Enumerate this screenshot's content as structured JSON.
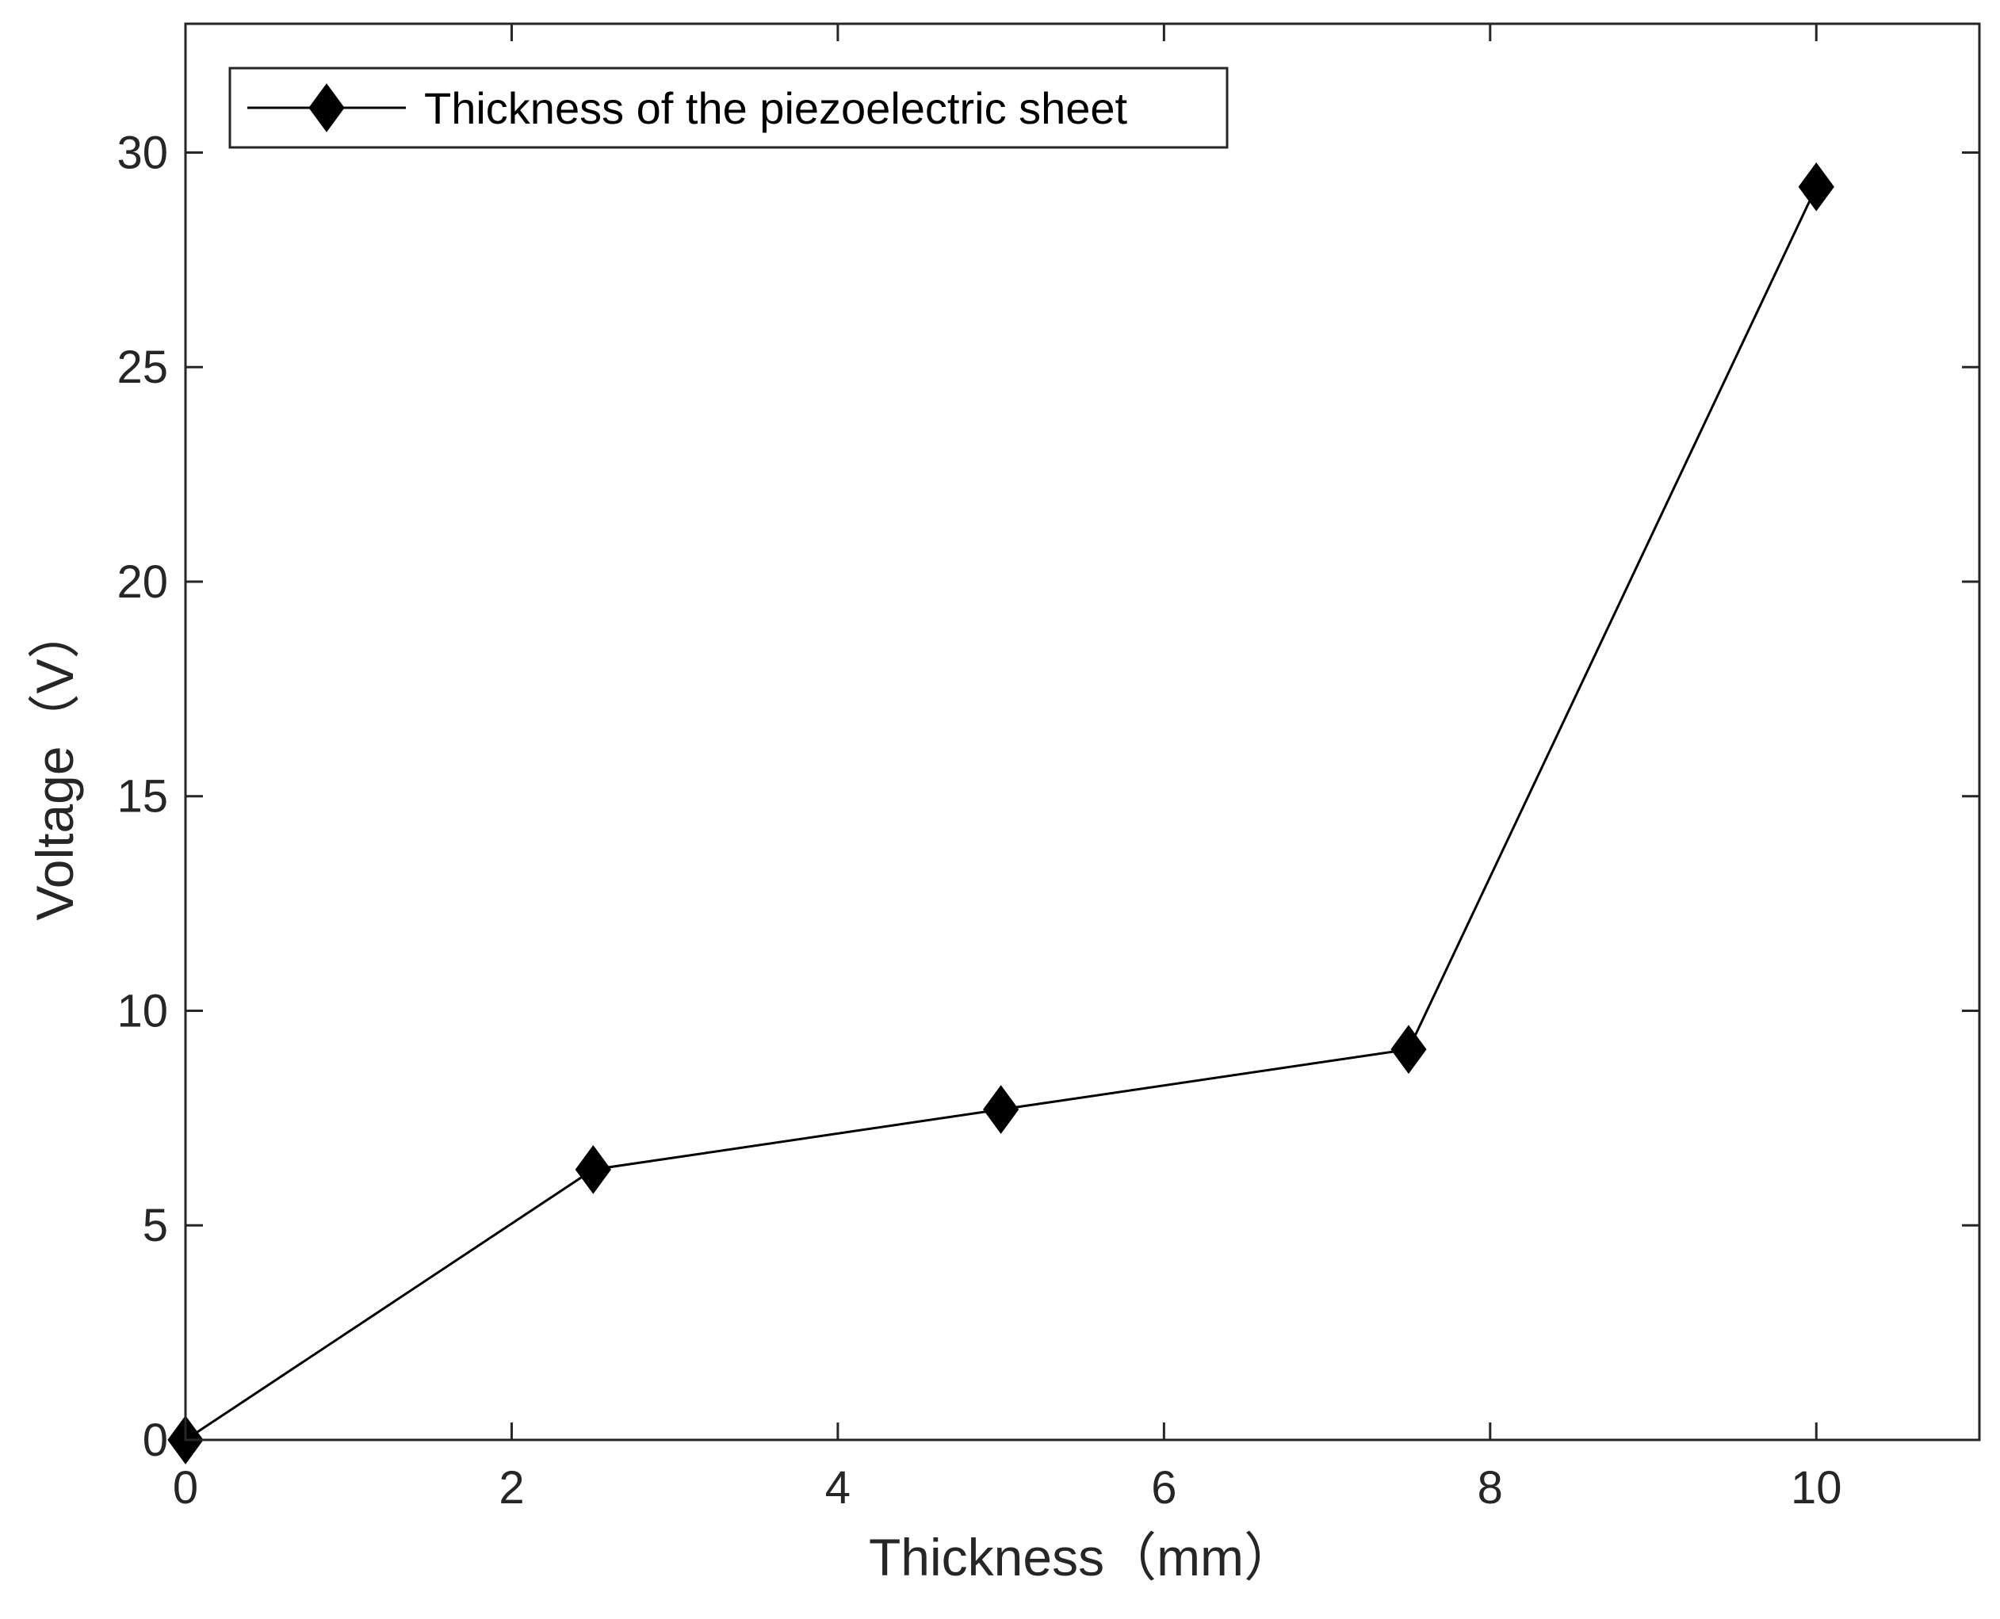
{
  "colors": {
    "background": "#ffffff",
    "axis": "#262626",
    "series": "#000000"
  },
  "chart_data": {
    "type": "line",
    "title": "",
    "xlabel": "Thickness（mm）",
    "ylabel": "Voltage（V）",
    "xlim": [
      0,
      11
    ],
    "ylim": [
      0,
      33
    ],
    "xticks": [
      0,
      2,
      4,
      6,
      8,
      10
    ],
    "yticks": [
      0,
      5,
      10,
      15,
      20,
      25,
      30
    ],
    "xtick_labels": [
      "0",
      "2",
      "4",
      "6",
      "8",
      "10"
    ],
    "ytick_labels": [
      "0",
      "5",
      "10",
      "15",
      "20",
      "25",
      "30"
    ],
    "grid": false,
    "legend_position": "top-left",
    "series": [
      {
        "name": "Thickness of the piezoelectric sheet",
        "marker": "diamond",
        "x": [
          0,
          2.5,
          5,
          7.5,
          10
        ],
        "y": [
          0,
          6.3,
          7.7,
          9.1,
          29.2
        ]
      }
    ]
  }
}
